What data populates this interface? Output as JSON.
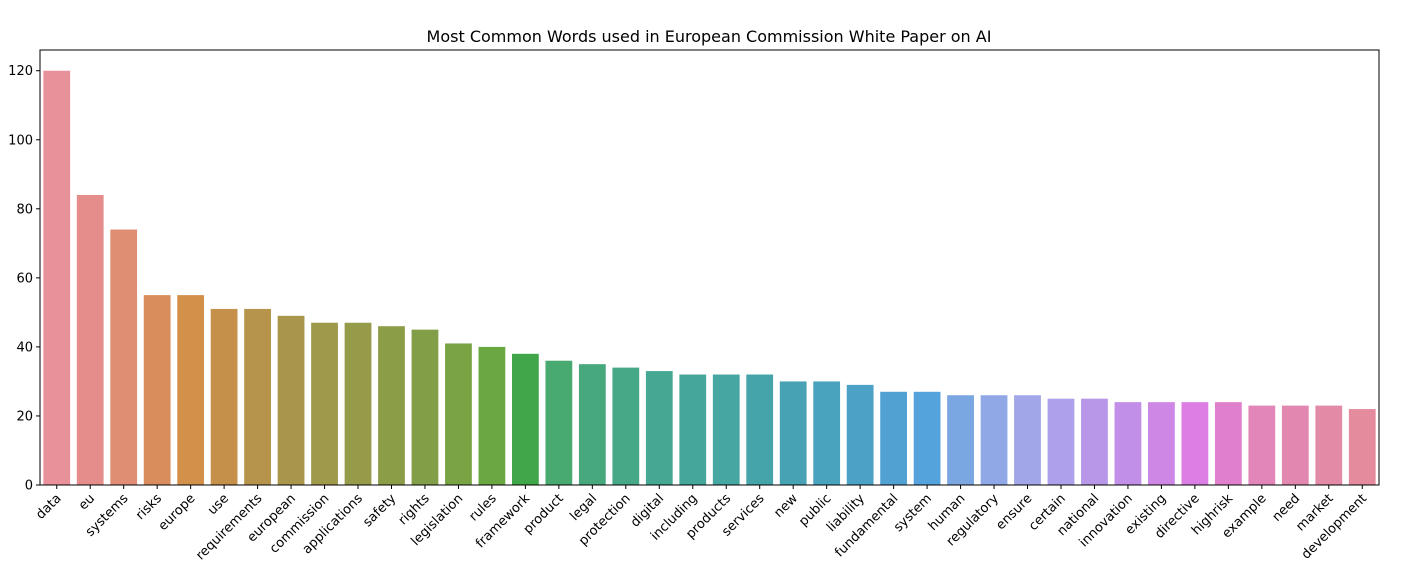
{
  "chart_data": {
    "type": "bar",
    "title": "Most Common Words used in European Commission White Paper on AI",
    "xlabel": "",
    "ylabel": "",
    "ylim": [
      0,
      126
    ],
    "yticks": [
      0,
      20,
      40,
      60,
      80,
      100,
      120
    ],
    "grid": false,
    "legend": "none",
    "categories": [
      "data",
      "eu",
      "systems",
      "risks",
      "europe",
      "use",
      "requirements",
      "european",
      "commission",
      "applications",
      "safety",
      "rights",
      "legislation",
      "rules",
      "framework",
      "product",
      "legal",
      "protection",
      "digital",
      "including",
      "products",
      "services",
      "new",
      "public",
      "liability",
      "fundamental",
      "system",
      "human",
      "regulatory",
      "ensure",
      "certain",
      "national",
      "innovation",
      "existing",
      "directive",
      "highrisk",
      "example",
      "need",
      "market",
      "development"
    ],
    "values": [
      120,
      84,
      74,
      55,
      55,
      51,
      51,
      49,
      47,
      47,
      46,
      45,
      41,
      40,
      38,
      36,
      35,
      34,
      33,
      32,
      32,
      32,
      30,
      30,
      29,
      27,
      27,
      26,
      26,
      26,
      25,
      25,
      24,
      24,
      24,
      24,
      23,
      23,
      23,
      22
    ],
    "colors": [
      "#e8919a",
      "#e48d8a",
      "#df8e74",
      "#d98c5c",
      "#d2904a",
      "#c5914a",
      "#b7944b",
      "#aa964b",
      "#9f994a",
      "#959b49",
      "#8c9d48",
      "#829f47",
      "#78a443",
      "#6aa942",
      "#40a649",
      "#48a971",
      "#47a87d",
      "#47a888",
      "#46a792",
      "#45a79b",
      "#45a6a2",
      "#44a4a9",
      "#47a3b4",
      "#4aa3be",
      "#4ca2c6",
      "#51a2d2",
      "#55a3dc",
      "#7aa6e1",
      "#90a8e6",
      "#a1a6e8",
      "#aea0ea",
      "#b897e9",
      "#c18fe8",
      "#cf87e6",
      "#dc7ee3",
      "#e07fcb",
      "#e286b9",
      "#e288b0",
      "#e38aa6",
      "#e48c9e"
    ]
  }
}
